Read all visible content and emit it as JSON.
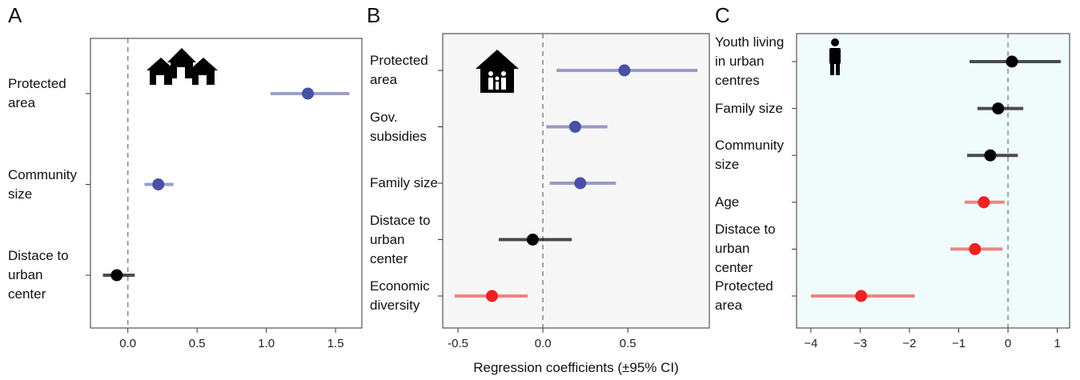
{
  "chart_data": [
    {
      "type": "forest",
      "panel": "A",
      "categories": [
        "Protected\narea",
        "Community\nsize",
        "Distace to\nurban\ncenter"
      ],
      "values": [
        1.3,
        0.22,
        -0.08
      ],
      "lower": [
        1.03,
        0.12,
        -0.18
      ],
      "upper": [
        1.6,
        0.33,
        0.05
      ],
      "colors": [
        "#4a4fa8",
        "#4a4fa8",
        "#000000"
      ],
      "background": "#ffffff",
      "xlim": [
        -0.27,
        1.69
      ],
      "xticks": [
        {
          "value": 0,
          "label": "0.0"
        },
        0.5,
        {
          "value": 1,
          "label": "1.0"
        },
        1.5
      ]
    },
    {
      "type": "forest",
      "panel": "B",
      "categories": [
        "Protected\narea",
        "Gov.\nsubsidies",
        "Family size",
        "Distace to\nurban\ncenter",
        "Economic\ndiversity"
      ],
      "values": [
        0.48,
        0.19,
        0.22,
        -0.06,
        -0.3
      ],
      "lower": [
        0.08,
        0.02,
        0.04,
        -0.26,
        -0.52
      ],
      "upper": [
        0.91,
        0.38,
        0.43,
        0.17,
        -0.09
      ],
      "colors": [
        "#4a4fa8",
        "#4a4fa8",
        "#4a4fa8",
        "#000000",
        "#ee2222"
      ],
      "background": "#f7f7f7",
      "xlim": [
        -0.59,
        0.98
      ],
      "xticks": [
        -0.5,
        {
          "value": 0,
          "label": "0.0"
        },
        0.5
      ],
      "xlabel": "Regression coefficients (±95% CI)"
    },
    {
      "type": "forest",
      "panel": "C",
      "categories": [
        "Youth living\nin urban\ncentres",
        "Family size",
        "Community\nsize",
        "Age",
        "Distace to\nurban\ncenter",
        "Protected\narea"
      ],
      "values": [
        0.08,
        -0.2,
        -0.36,
        -0.49,
        -0.67,
        -2.98
      ],
      "lower": [
        -0.78,
        -0.62,
        -0.83,
        -0.88,
        -1.17,
        -4.0
      ],
      "upper": [
        1.07,
        0.31,
        0.2,
        -0.07,
        -0.11,
        -1.89
      ],
      "colors": [
        "#000000",
        "#000000",
        "#000000",
        "#ee2222",
        "#ee2222",
        "#ee2222"
      ],
      "background": "#f0fbfb",
      "xlim": [
        -4.29,
        1.25
      ],
      "xticks": [
        {
          "value": -4,
          "label": "−4"
        },
        {
          "value": -3,
          "label": "−3"
        },
        {
          "value": -2,
          "label": "−2"
        },
        {
          "value": -1,
          "label": "−1"
        },
        0,
        1
      ]
    }
  ]
}
